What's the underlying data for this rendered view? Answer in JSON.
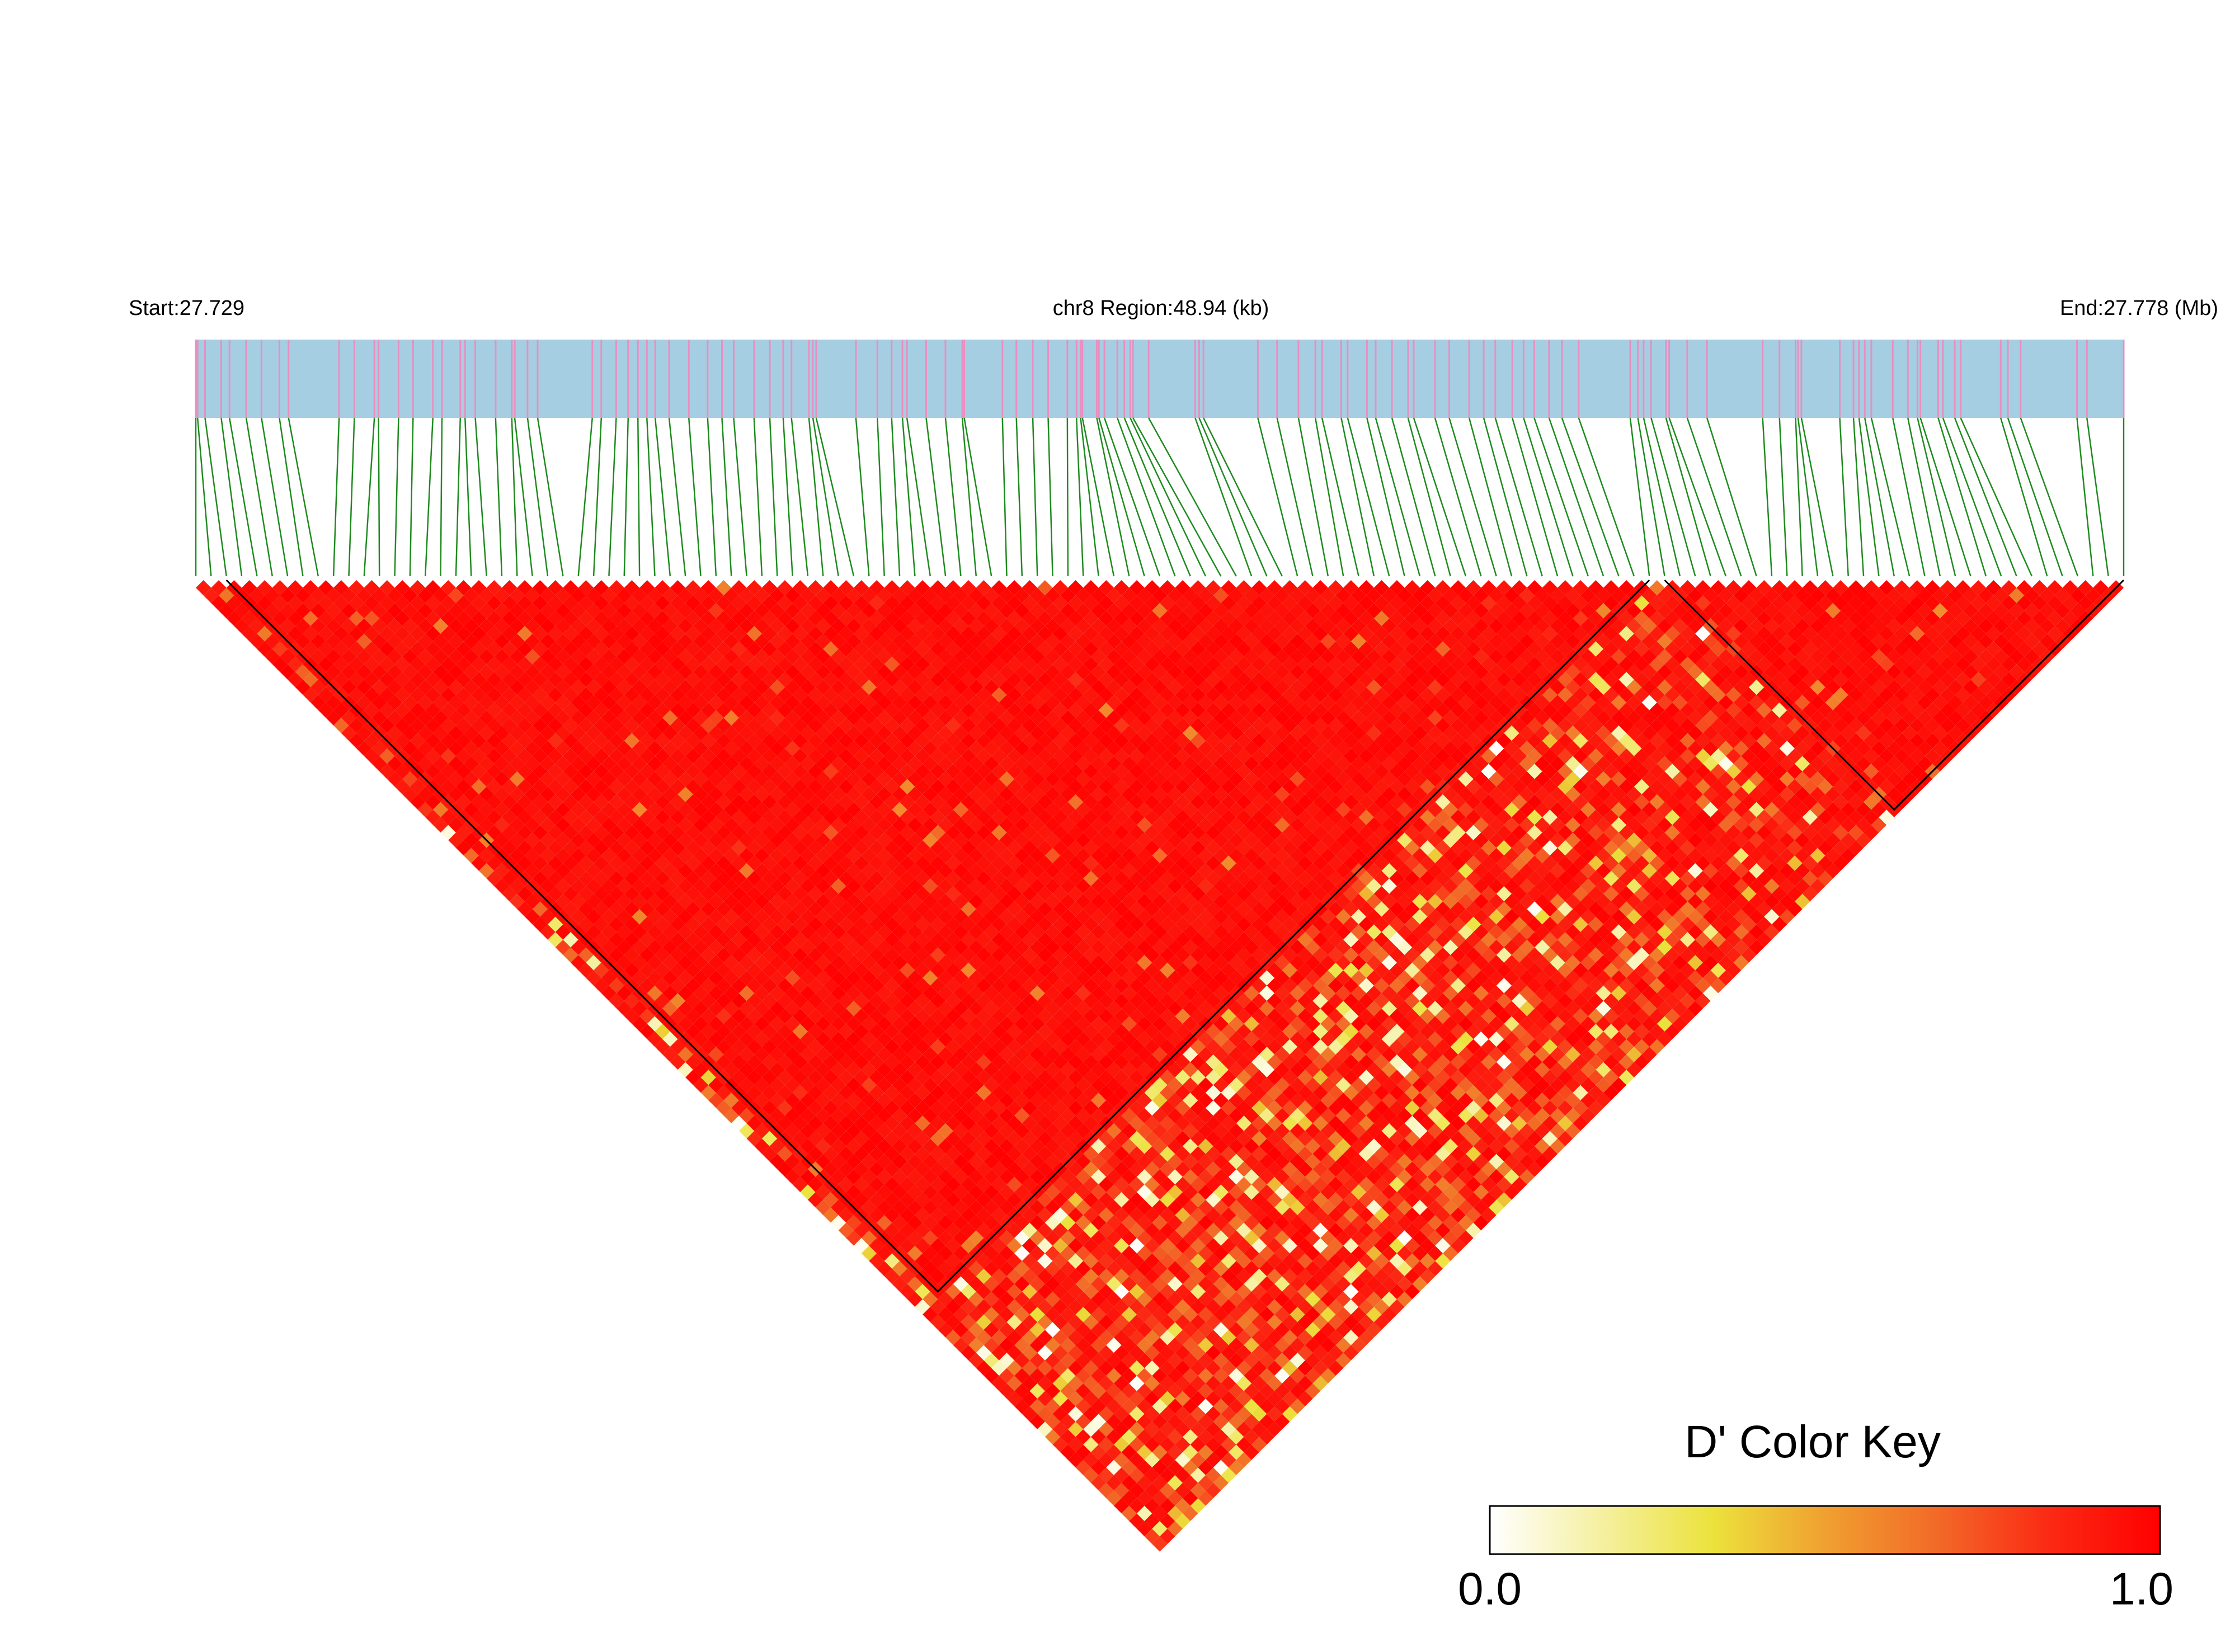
{
  "header": {
    "start_label": "Start:27.729",
    "region_label": "chr8 Region:48.94 (kb)",
    "end_label": "End:27.778 (Mb)"
  },
  "colors": {
    "track_bg": "#a6cee3",
    "snp_mark": "#e98fc0",
    "connector": "#1e8a1e",
    "ld_high": "#ff0000",
    "ld_mid": "#f0e040",
    "ld_low": "#ffffff",
    "block_outline": "#000000"
  },
  "chart_data": {
    "type": "heatmap",
    "description_type": "LD block heatmap (D')",
    "chromosome": "chr8",
    "region_start_mb": 27.729,
    "region_end_mb": 27.778,
    "region_length_kb": 48.94,
    "snp_count": 127,
    "value_range": [
      0.0,
      1.0
    ],
    "haplotype_blocks_snp_index": [
      [
        2,
        96
      ],
      [
        96,
        127
      ]
    ],
    "color_key": {
      "title": "D' Color Key",
      "min_label": "0.0",
      "max_label": "1.0",
      "stops": [
        "#ffffff",
        "#f5f0a0",
        "#ece23c",
        "#f0a030",
        "#f26a28",
        "#fb2a14",
        "#ff0000"
      ]
    }
  }
}
